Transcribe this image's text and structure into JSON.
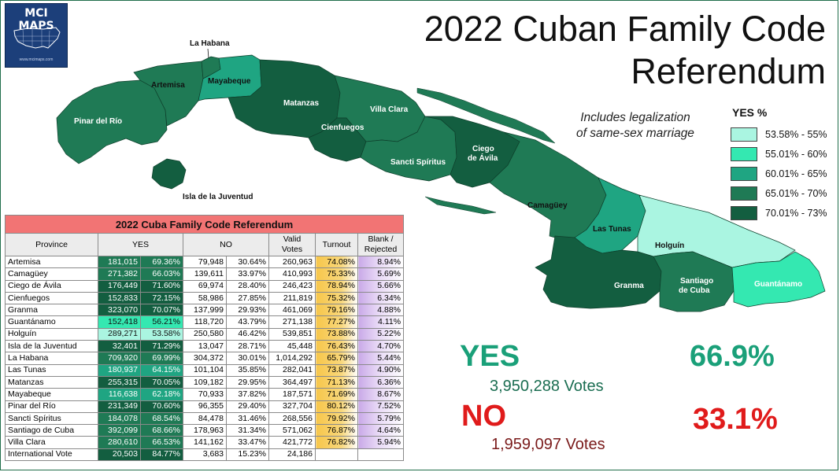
{
  "logo": {
    "text": "MCI MAPS",
    "url": "www.mcimaps.com"
  },
  "title_line1": "2022 Cuban Family Code",
  "title_line2": "Referendum",
  "note_line1": "Includes legalization",
  "note_line2": "of same-sex marriage",
  "legend": {
    "header": "YES  %",
    "items": [
      {
        "label": "53.58% - 55%",
        "color": "#aaf5e1"
      },
      {
        "label": "55.01% - 60%",
        "color": "#34e8b1"
      },
      {
        "label": "60.01% - 65%",
        "color": "#1fa582"
      },
      {
        "label": "65.01% - 70%",
        "color": "#1f7a55"
      },
      {
        "label": "70.01% - 73%",
        "color": "#135e40"
      }
    ]
  },
  "map_labels": {
    "la_habana": "La Habana",
    "artemisa": "Artemisa",
    "mayabeque": "Mayabeque",
    "matanzas": "Matanzas",
    "villa_clara": "Villa Clara",
    "cienfuegos": "Cienfuegos",
    "pinar": "Pinar del Río",
    "sancti": "Sancti Spíritus",
    "ciego1": "Ciego",
    "ciego2": "de Ávila",
    "camaguey": "Camagüey",
    "las_tunas": "Las Tunas",
    "holguin": "Holguín",
    "isla": "Isla de la Juventud",
    "granma": "Granma",
    "santiago1": "Santiago",
    "santiago2": "de Cuba",
    "guantanamo": "Guantánamo"
  },
  "table": {
    "caption": "2022 Cuba Family Code Referendum",
    "headers": {
      "province": "Province",
      "yes": "YES",
      "no": "NO",
      "valid1": "Valid",
      "valid2": "Votes",
      "turnout": "Turnout",
      "blank1": "Blank /",
      "blank2": "Rejected"
    },
    "rows": [
      {
        "province": "Artemisa",
        "yes": "181,015",
        "yes_pct": "69.36%",
        "no": "79,948",
        "no_pct": "30.64%",
        "valid": "260,963",
        "turnout": "74.08%",
        "blank": "8.94%"
      },
      {
        "province": "Camagüey",
        "yes": "271,382",
        "yes_pct": "66.03%",
        "no": "139,611",
        "no_pct": "33.97%",
        "valid": "410,993",
        "turnout": "75.33%",
        "blank": "5.69%"
      },
      {
        "province": "Ciego de Ávila",
        "yes": "176,449",
        "yes_pct": "71.60%",
        "no": "69,974",
        "no_pct": "28.40%",
        "valid": "246,423",
        "turnout": "78.94%",
        "blank": "5.66%"
      },
      {
        "province": "Cienfuegos",
        "yes": "152,833",
        "yes_pct": "72.15%",
        "no": "58,986",
        "no_pct": "27.85%",
        "valid": "211,819",
        "turnout": "75.32%",
        "blank": "6.34%"
      },
      {
        "province": "Granma",
        "yes": "323,070",
        "yes_pct": "70.07%",
        "no": "137,999",
        "no_pct": "29.93%",
        "valid": "461,069",
        "turnout": "79.16%",
        "blank": "4.88%"
      },
      {
        "province": "Guantánamo",
        "yes": "152,418",
        "yes_pct": "56.21%",
        "no": "118,720",
        "no_pct": "43.79%",
        "valid": "271,138",
        "turnout": "77.27%",
        "blank": "4.11%"
      },
      {
        "province": "Holguín",
        "yes": "289,271",
        "yes_pct": "53.58%",
        "no": "250,580",
        "no_pct": "46.42%",
        "valid": "539,851",
        "turnout": "73.88%",
        "blank": "5.22%"
      },
      {
        "province": "Isla de la Juventud",
        "yes": "32,401",
        "yes_pct": "71.29%",
        "no": "13,047",
        "no_pct": "28.71%",
        "valid": "45,448",
        "turnout": "76.43%",
        "blank": "4.70%"
      },
      {
        "province": "La Habana",
        "yes": "709,920",
        "yes_pct": "69.99%",
        "no": "304,372",
        "no_pct": "30.01%",
        "valid": "1,014,292",
        "turnout": "65.79%",
        "blank": "5.44%"
      },
      {
        "province": "Las Tunas",
        "yes": "180,937",
        "yes_pct": "64.15%",
        "no": "101,104",
        "no_pct": "35.85%",
        "valid": "282,041",
        "turnout": "73.87%",
        "blank": "4.90%"
      },
      {
        "province": "Matanzas",
        "yes": "255,315",
        "yes_pct": "70.05%",
        "no": "109,182",
        "no_pct": "29.95%",
        "valid": "364,497",
        "turnout": "71.13%",
        "blank": "6.36%"
      },
      {
        "province": "Mayabeque",
        "yes": "116,638",
        "yes_pct": "62.18%",
        "no": "70,933",
        "no_pct": "37.82%",
        "valid": "187,571",
        "turnout": "71.69%",
        "blank": "8.67%"
      },
      {
        "province": "Pinar del Río",
        "yes": "231,349",
        "yes_pct": "70.60%",
        "no": "96,355",
        "no_pct": "29.40%",
        "valid": "327,704",
        "turnout": "80.12%",
        "blank": "7.52%"
      },
      {
        "province": "Sancti Spíritus",
        "yes": "184,078",
        "yes_pct": "68.54%",
        "no": "84,478",
        "no_pct": "31.46%",
        "valid": "268,556",
        "turnout": "79.92%",
        "blank": "5.79%"
      },
      {
        "province": "Santiago de Cuba",
        "yes": "392,099",
        "yes_pct": "68.66%",
        "no": "178,963",
        "no_pct": "31.34%",
        "valid": "571,062",
        "turnout": "76.87%",
        "blank": "4.64%"
      },
      {
        "province": "Villa Clara",
        "yes": "280,610",
        "yes_pct": "66.53%",
        "no": "141,162",
        "no_pct": "33.47%",
        "valid": "421,772",
        "turnout": "76.82%",
        "blank": "5.94%"
      },
      {
        "province": "International Vote",
        "yes": "20,503",
        "yes_pct": "84.77%",
        "no": "3,683",
        "no_pct": "15.23%",
        "valid": "24,186",
        "turnout": "",
        "blank": ""
      }
    ]
  },
  "results": {
    "yes_label": "YES",
    "yes_pct": "66.9%",
    "yes_votes": "3,950,288 Votes",
    "no_label": "NO",
    "no_pct": "33.1%",
    "no_votes": "1,959,097 Votes"
  }
}
